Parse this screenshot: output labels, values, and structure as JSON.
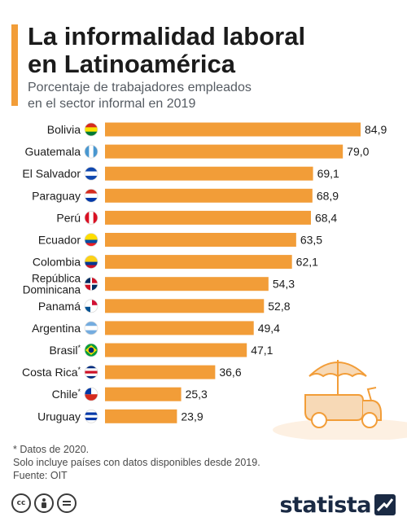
{
  "colors": {
    "accent": "#f29d38",
    "bar": "#f29d38",
    "title": "#1b1b1b",
    "subtitle": "#555b62",
    "label": "#1b1b1b",
    "brand": "#1a2a44"
  },
  "header": {
    "title_line1": "La informalidad laboral",
    "title_line2": "en Latinoamérica",
    "subtitle_line1": "Porcentaje de trabajadores empleados",
    "subtitle_line2": "en el sector informal en 2019"
  },
  "chart_data": {
    "type": "bar",
    "orientation": "horizontal",
    "categories": [
      "Bolivia",
      "Guatemala",
      "El Salvador",
      "Paraguay",
      "Perú",
      "Ecuador",
      "Colombia",
      "República Dominicana",
      "Panamá",
      "Argentina",
      "Brasil*",
      "Costa Rica*",
      "Chile*",
      "Uruguay"
    ],
    "values": [
      84.9,
      79.0,
      69.1,
      68.9,
      68.4,
      63.5,
      62.1,
      54.3,
      52.8,
      49.4,
      47.1,
      36.6,
      25.3,
      23.9
    ],
    "value_labels": [
      "84,9",
      "79,0",
      "69,1",
      "68,9",
      "68,4",
      "63,5",
      "62,1",
      "54,3",
      "52,8",
      "49,4",
      "47,1",
      "36,6",
      "25,3",
      "23,9"
    ],
    "flag_icons": [
      "bolivia-flag-icon",
      "guatemala-flag-icon",
      "el-salvador-flag-icon",
      "paraguay-flag-icon",
      "peru-flag-icon",
      "ecuador-flag-icon",
      "colombia-flag-icon",
      "dominican-republic-flag-icon",
      "panama-flag-icon",
      "argentina-flag-icon",
      "brazil-flag-icon",
      "costa-rica-flag-icon",
      "chile-flag-icon",
      "uruguay-flag-icon"
    ],
    "xlim": [
      0,
      90
    ],
    "grid": false,
    "legend": "none"
  },
  "footnotes": {
    "line1": "* Datos de 2020.",
    "line2": "Solo incluye países con datos disponibles desde 2019.",
    "line3": "Fuente: OIT"
  },
  "footer": {
    "brand": "statista",
    "icons": [
      "creative-commons-icon",
      "attribution-icon",
      "no-derivatives-icon"
    ]
  },
  "illustration": {
    "icon": "food-cart-with-umbrella-icon"
  }
}
